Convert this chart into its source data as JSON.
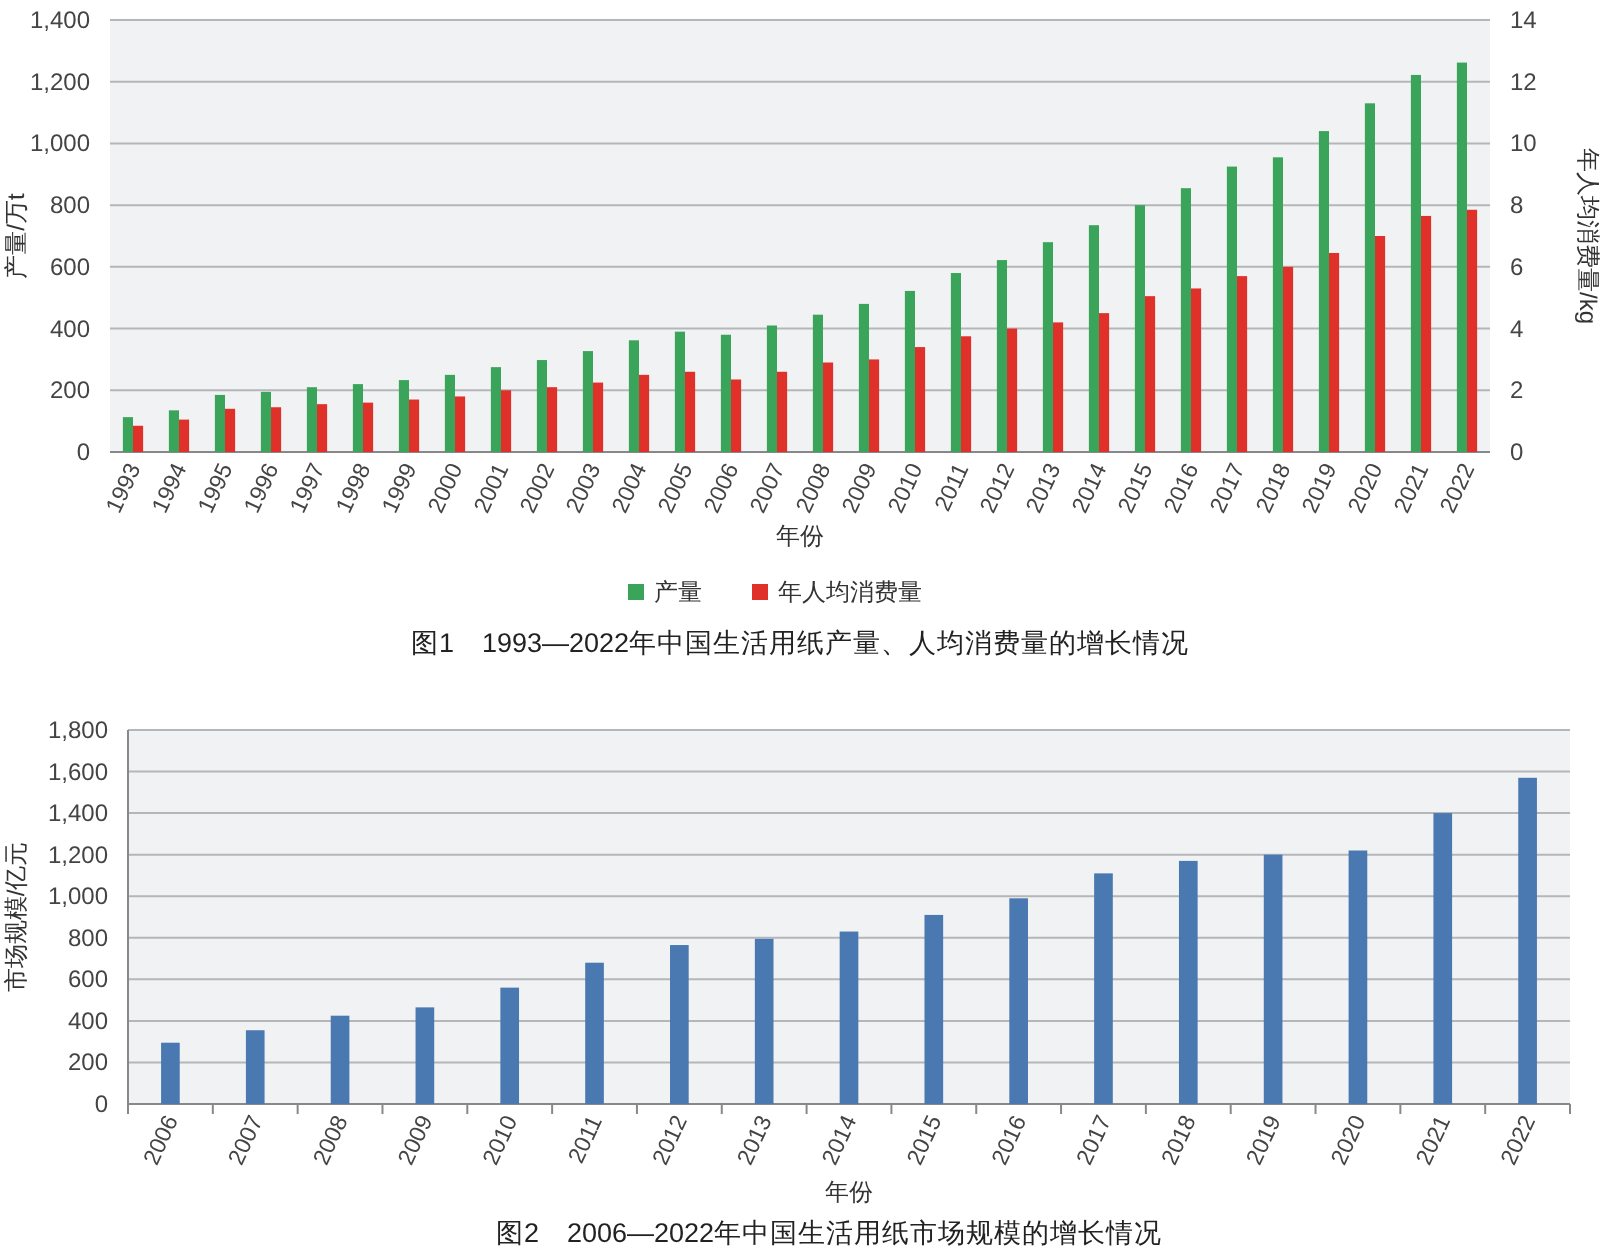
{
  "chart_data": [
    {
      "type": "bar",
      "title": "图1　1993—2022年中国生活用纸产量、人均消费量的增长情况",
      "xlabel": "年份",
      "ylabel": "产量/万t",
      "y2label": "年人均消费量/kg",
      "categories": [
        "1993",
        "1994",
        "1995",
        "1996",
        "1997",
        "1998",
        "1999",
        "2000",
        "2001",
        "2002",
        "2003",
        "2004",
        "2005",
        "2006",
        "2007",
        "2008",
        "2009",
        "2010",
        "2011",
        "2012",
        "2013",
        "2014",
        "2015",
        "2016",
        "2017",
        "2018",
        "2019",
        "2020",
        "2021",
        "2022"
      ],
      "series": [
        {
          "name": "产量",
          "color": "#3aa55a",
          "values": [
            113,
            135,
            185,
            195,
            210,
            220,
            233,
            250,
            275,
            298,
            327,
            362,
            390,
            380,
            410,
            445,
            480,
            522,
            580,
            622,
            680,
            735,
            800,
            855,
            925,
            955,
            1040,
            1130,
            1222,
            1262
          ]
        },
        {
          "name": "年人均消费量",
          "color": "#e0302a",
          "axis": "y2",
          "values": [
            0.85,
            1.05,
            1.4,
            1.45,
            1.55,
            1.6,
            1.7,
            1.8,
            2.0,
            2.1,
            2.25,
            2.5,
            2.6,
            2.35,
            2.6,
            2.9,
            3.0,
            3.4,
            3.75,
            4.0,
            4.2,
            4.5,
            5.05,
            5.3,
            5.7,
            6.0,
            6.45,
            7.0,
            7.65,
            7.85
          ]
        }
      ],
      "ylim": [
        0,
        1400
      ],
      "yticks": [
        0,
        200,
        400,
        600,
        800,
        {
          "value": 1000,
          "label": "1,000"
        },
        {
          "value": 1200,
          "label": "1,200"
        },
        {
          "value": 1400,
          "label": "1,400"
        }
      ],
      "y2lim": [
        0,
        14
      ],
      "y2ticks": [
        0,
        2,
        4,
        6,
        8,
        10,
        12,
        14
      ],
      "grid": "y",
      "legend": "bottom"
    },
    {
      "type": "bar",
      "title": "图2　2006—2022年中国生活用纸市场规模的增长情况",
      "xlabel": "年份",
      "ylabel": "市场规模/亿元",
      "categories": [
        "2006",
        "2007",
        "2008",
        "2009",
        "2010",
        "2011",
        "2012",
        "2013",
        "2014",
        "2015",
        "2016",
        "2017",
        "2018",
        "2019",
        "2020",
        "2021",
        "2022"
      ],
      "series": [
        {
          "color": "#4a78b0",
          "values": [
            295,
            355,
            425,
            465,
            560,
            680,
            765,
            795,
            830,
            910,
            990,
            1110,
            1170,
            1200,
            1220,
            1400,
            1570
          ]
        }
      ],
      "ylim": [
        0,
        1800
      ],
      "yticks": [
        0,
        200,
        400,
        600,
        800,
        {
          "value": 1000,
          "label": "1,000"
        },
        {
          "value": 1200,
          "label": "1,200"
        },
        {
          "value": 1400,
          "label": "1,400"
        },
        {
          "value": 1600,
          "label": "1,600"
        },
        {
          "value": 1800,
          "label": "1,800"
        }
      ],
      "grid": "y"
    }
  ]
}
